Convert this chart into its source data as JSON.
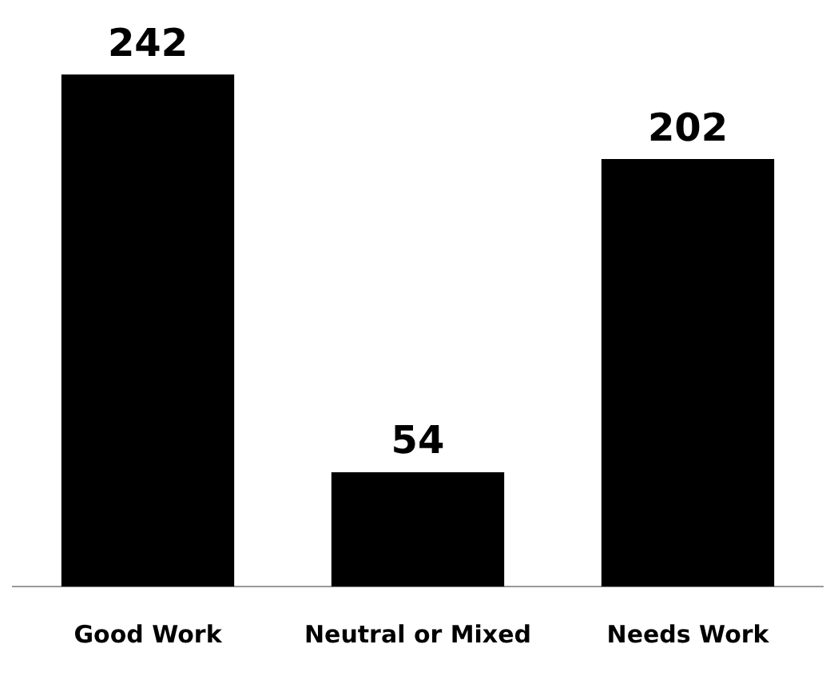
{
  "chart_data": {
    "type": "bar",
    "categories": [
      "Good Work",
      "Neutral or Mixed",
      "Needs Work"
    ],
    "values": [
      242,
      54,
      202
    ],
    "color": "#000000",
    "tick_labels": "x",
    "grid": false,
    "legend": false,
    "data_labels": true
  }
}
